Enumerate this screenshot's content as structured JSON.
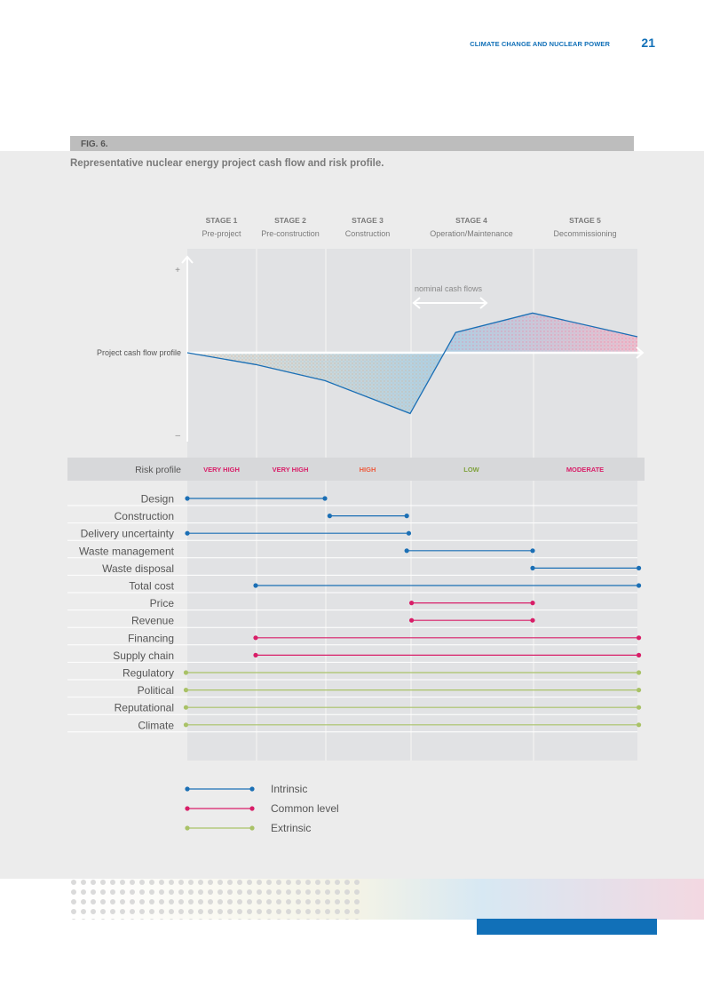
{
  "header": {
    "title": "CLIMATE CHANGE AND NUCLEAR POWER",
    "page_number": "21"
  },
  "figure": {
    "label": "FIG. 6.",
    "caption": "Representative nuclear energy project cash flow and risk profile."
  },
  "colors": {
    "intrinsic": "#1b6fb5",
    "common": "#d81e68",
    "extrinsic": "#a9c267",
    "very_high": "#d81e68",
    "high": "#ee5a3c",
    "low": "#7ea13b",
    "moderate": "#d81e68"
  },
  "chart_data": {
    "type": "line",
    "title": "Representative nuclear energy project cash flow and risk profile.",
    "stages": [
      {
        "name": "STAGE 1",
        "desc": "Pre-project",
        "start": 0,
        "end": 1
      },
      {
        "name": "STAGE 2",
        "desc": "Pre-construction",
        "start": 1,
        "end": 2
      },
      {
        "name": "STAGE 3",
        "desc": "Construction",
        "start": 2,
        "end": 3.25
      },
      {
        "name": "STAGE 4",
        "desc": "Operation/Maintenance",
        "start": 3.25,
        "end": 5
      },
      {
        "name": "STAGE 5",
        "desc": "Decommissioning",
        "start": 5,
        "end": 6.5
      }
    ],
    "x_range": [
      0,
      6.5
    ],
    "cash_flow": {
      "label": "Project cash flow profile",
      "y_range": [
        -1,
        1
      ],
      "plus_label": "+",
      "minus_label": "–",
      "annotation": "nominal cash flows",
      "points": [
        {
          "x": 0,
          "y": 0
        },
        {
          "x": 1,
          "y": -0.14
        },
        {
          "x": 2,
          "y": -0.33
        },
        {
          "x": 3.25,
          "y": -0.72
        },
        {
          "x": 3.9,
          "y": 0.24
        },
        {
          "x": 5,
          "y": 0.47
        },
        {
          "x": 6.5,
          "y": 0.19
        }
      ]
    },
    "risk_profile": {
      "label": "Risk profile",
      "levels": [
        {
          "stage": 1,
          "text": "VERY HIGH",
          "color_key": "very_high"
        },
        {
          "stage": 2,
          "text": "VERY HIGH",
          "color_key": "very_high"
        },
        {
          "stage": 3,
          "text": "HIGH",
          "color_key": "high"
        },
        {
          "stage": 4,
          "text": "LOW",
          "color_key": "low"
        },
        {
          "stage": 5,
          "text": "MODERATE",
          "color_key": "moderate"
        }
      ]
    },
    "risks": [
      {
        "name": "Design",
        "type": "intrinsic",
        "start": 0,
        "end": 2
      },
      {
        "name": "Construction",
        "type": "intrinsic",
        "start": 2.07,
        "end": 3.2
      },
      {
        "name": "Delivery uncertainty",
        "type": "intrinsic",
        "start": 0,
        "end": 3.23
      },
      {
        "name": "Waste management",
        "type": "intrinsic",
        "start": 3.2,
        "end": 5
      },
      {
        "name": "Waste disposal",
        "type": "intrinsic",
        "start": 5,
        "end": 6.52
      },
      {
        "name": "Total cost",
        "type": "intrinsic",
        "start": 1,
        "end": 6.52
      },
      {
        "name": "Price",
        "type": "common",
        "start": 3.27,
        "end": 5
      },
      {
        "name": "Revenue",
        "type": "common",
        "start": 3.27,
        "end": 5
      },
      {
        "name": "Financing",
        "type": "common",
        "start": 1,
        "end": 6.52
      },
      {
        "name": "Supply chain",
        "type": "common",
        "start": 1,
        "end": 6.52
      },
      {
        "name": "Regulatory",
        "type": "extrinsic",
        "start": -0.02,
        "end": 6.52
      },
      {
        "name": "Political",
        "type": "extrinsic",
        "start": -0.02,
        "end": 6.52
      },
      {
        "name": "Reputational",
        "type": "extrinsic",
        "start": -0.02,
        "end": 6.52
      },
      {
        "name": "Climate",
        "type": "extrinsic",
        "start": -0.02,
        "end": 6.52
      }
    ],
    "legend": [
      {
        "key": "intrinsic",
        "label": "Intrinsic"
      },
      {
        "key": "common",
        "label": "Common level"
      },
      {
        "key": "extrinsic",
        "label": "Extrinsic"
      }
    ]
  }
}
